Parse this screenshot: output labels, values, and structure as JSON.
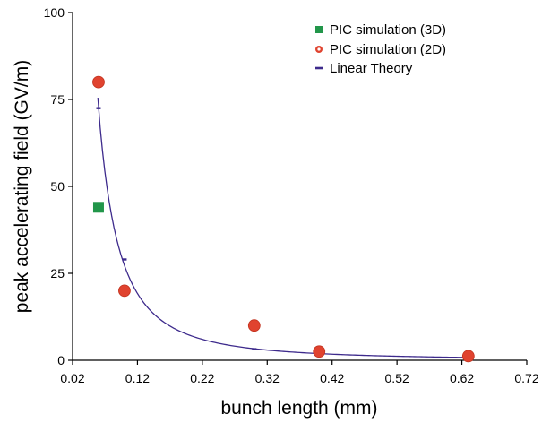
{
  "chart_data": {
    "type": "scatter",
    "xlabel": "bunch length (mm)",
    "ylabel": "peak accelerating field (GV/m)",
    "xlim": [
      0.02,
      0.72
    ],
    "ylim": [
      0,
      100
    ],
    "x_ticks": [
      "0.02",
      "0.12",
      "0.22",
      "0.32",
      "0.42",
      "0.52",
      "0.62",
      "0.72"
    ],
    "y_ticks": [
      "0",
      "25",
      "50",
      "75",
      "100"
    ],
    "grid": false,
    "legend_position": "top-right",
    "series": [
      {
        "name": "PIC simulation (3D)",
        "marker": "square",
        "color": "#22964a",
        "points": [
          [
            0.06,
            44
          ]
        ]
      },
      {
        "name": "PIC simulation (2D)",
        "marker": "circle",
        "color": "#e0432f",
        "points": [
          [
            0.06,
            80
          ],
          [
            0.1,
            20
          ],
          [
            0.3,
            10
          ],
          [
            0.4,
            2.5
          ],
          [
            0.63,
            1.2
          ]
        ]
      },
      {
        "name": "Linear Theory",
        "marker": "dash",
        "color": "#3d2a8c",
        "points": [
          [
            0.06,
            72.5
          ],
          [
            0.1,
            29
          ],
          [
            0.3,
            3.2
          ],
          [
            0.4,
            1.9
          ],
          [
            0.63,
            0.8
          ]
        ],
        "curve_model": "power_law",
        "curve_range": [
          0.059,
          0.625
        ]
      }
    ]
  }
}
